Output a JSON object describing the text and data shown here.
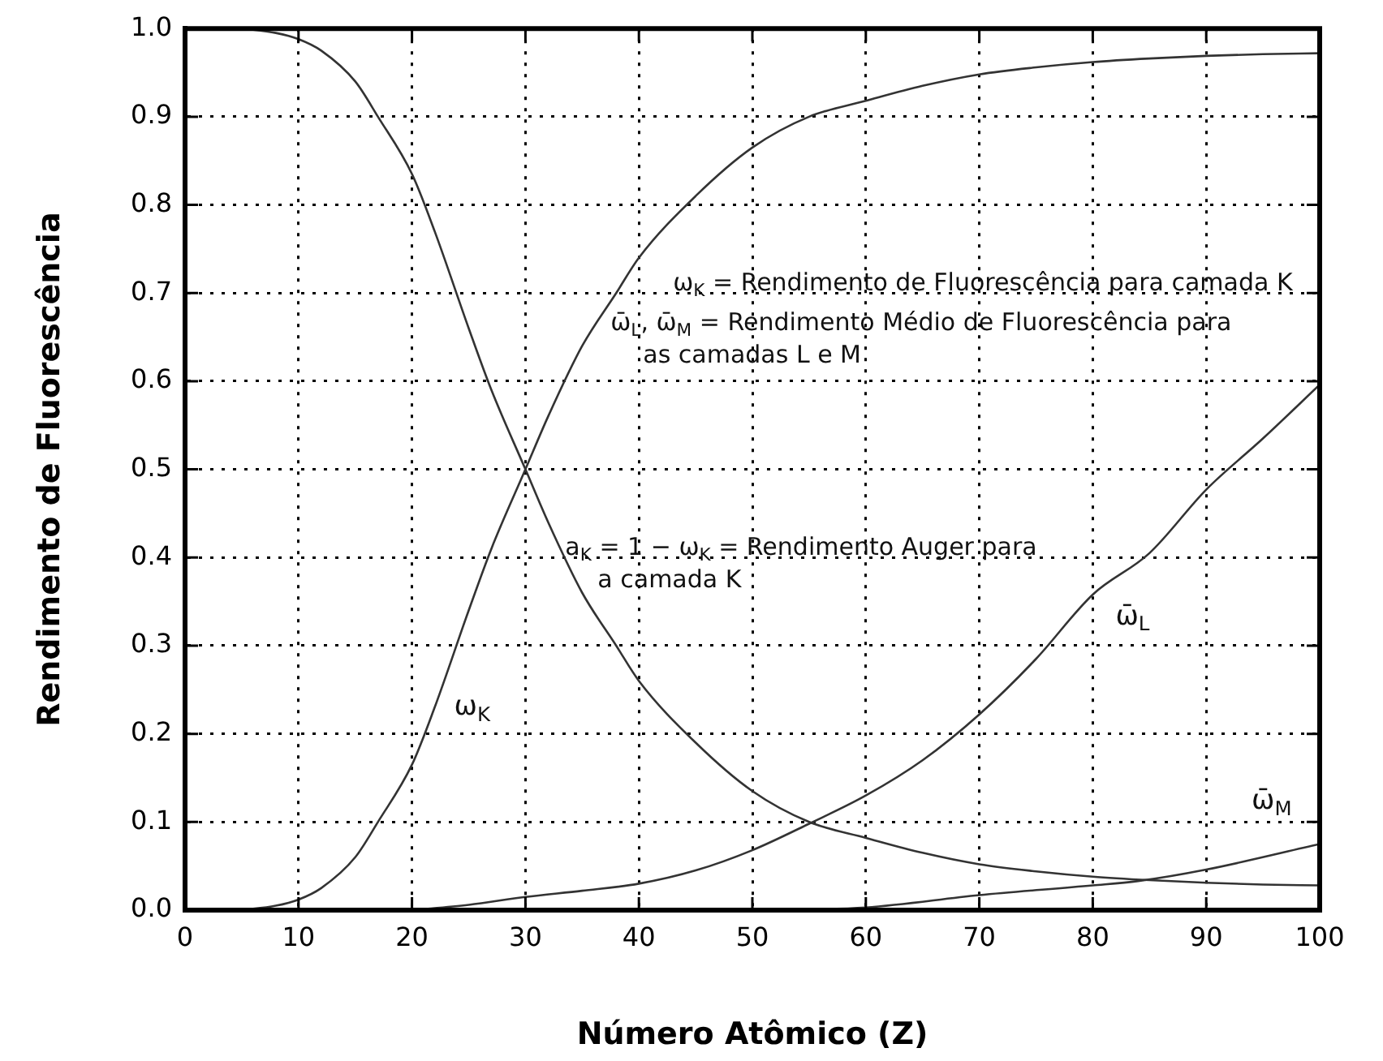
{
  "chart_data": {
    "type": "line",
    "xlabel": "Número Atômico (Z)",
    "ylabel": "Rendimento de Fluorescência",
    "x": [
      5,
      8,
      10,
      12,
      15,
      17,
      20,
      22,
      25,
      27,
      30,
      32,
      35,
      38,
      40,
      45,
      50,
      55,
      60,
      65,
      70,
      75,
      80,
      85,
      90,
      95,
      100
    ],
    "series": [
      {
        "type": "line",
        "name": "ω$_{K}$",
        "color": "#333333",
        "values": [
          0,
          0.005,
          0.012,
          0.025,
          0.06,
          0.1,
          0.165,
          0.23,
          0.34,
          0.41,
          0.5,
          0.56,
          0.64,
          0.7,
          0.74,
          0.81,
          0.865,
          0.9,
          0.918,
          0.935,
          0.948,
          0.956,
          0.962,
          0.966,
          0.969,
          0.971,
          0.972
        ]
      },
      {
        "type": "line",
        "color": "#333333",
        "values": [
          1,
          0.995,
          0.988,
          0.975,
          0.94,
          0.9,
          0.835,
          0.77,
          0.66,
          0.59,
          0.5,
          0.44,
          0.36,
          0.3,
          0.26,
          0.19,
          0.135,
          0.1,
          0.082,
          0.065,
          0.052,
          0.044,
          0.038,
          0.034,
          0.031,
          0.029,
          0.028
        ]
      },
      {
        "type": "line",
        "name": "ω̄$_{L}$",
        "color": "#333333",
        "x": [
          20,
          25,
          30,
          35,
          40,
          45,
          50,
          55,
          60,
          65,
          70,
          75,
          80,
          85,
          90,
          95,
          100
        ],
        "values": [
          0,
          0.006,
          0.015,
          0.022,
          0.03,
          0.045,
          0.068,
          0.098,
          0.13,
          0.17,
          0.222,
          0.285,
          0.358,
          0.405,
          0.477,
          0.535,
          0.596
        ]
      },
      {
        "type": "line",
        "name": "ω̄$_{M}$",
        "color": "#333333",
        "x": [
          50,
          60,
          70,
          80,
          84,
          90,
          100
        ],
        "values": [
          0,
          0.003,
          0.017,
          0.028,
          0.033,
          0.046,
          0.075
        ]
      }
    ],
    "xlim": [
      0,
      100
    ],
    "xticks": [
      0,
      10,
      20,
      30,
      40,
      50,
      60,
      70,
      80,
      90,
      100
    ],
    "ylim": [
      0,
      1
    ],
    "yticks": [
      {
        "value": 0,
        "label": "0.0"
      },
      0.1,
      0.2,
      0.3,
      0.4,
      0.5,
      0.6,
      0.7,
      0.8,
      0.9,
      {
        "value": 1,
        "label": "1.0"
      }
    ],
    "grid": true,
    "marker": "none",
    "line_style": "solid",
    "annotations": [
      "ω$_{K}$ = Rendimento de Fluorescência para camada K",
      "ω̄$_{L}$, ω̄$_{M}$ = Rendimento Médio de Fluorescência para\nas camadas L e M",
      "a$_{K}$ = 1 − ω$_{K}$ = Rendimento Auger para\na camada K"
    ]
  }
}
